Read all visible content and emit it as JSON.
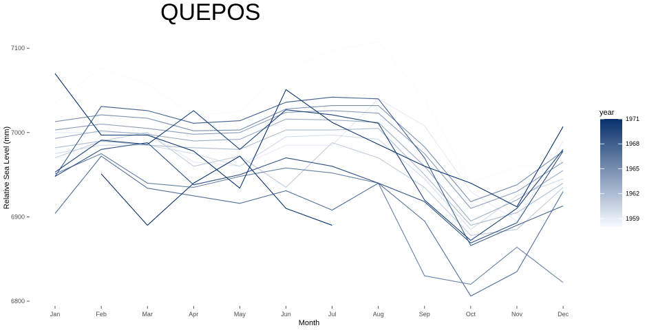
{
  "chart_data": {
    "type": "line",
    "title": "QUEPOS",
    "xlabel": "Month",
    "ylabel": "Relative Sea Level (mm)",
    "categories": [
      "Jan",
      "Feb",
      "Mar",
      "Apr",
      "May",
      "Jun",
      "Jul",
      "Aug",
      "Sep",
      "Oct",
      "Nov",
      "Dec"
    ],
    "ylim": [
      6790,
      7110
    ],
    "yticks": [
      6800,
      6900,
      7000,
      7100
    ],
    "grid": false,
    "legend": {
      "title": "year",
      "position": "right",
      "type": "colorbar",
      "range": [
        1958,
        1971
      ],
      "ticks": [
        1959,
        1962,
        1965,
        1968,
        1971
      ],
      "low_color": "#f7fbff",
      "high_color": "#08306b"
    },
    "series": [
      {
        "year": 1958,
        "values": [
          7035,
          7077,
          7058,
          7020,
          7025,
          7075,
          7097,
          7108,
          7040,
          6940,
          6960,
          6960
        ]
      },
      {
        "year": 1959,
        "values": [
          7000,
          7000,
          7000,
          6965,
          6960,
          6985,
          6985,
          7040,
          7008,
          6930,
          6895,
          6990
        ]
      },
      {
        "year": 1960,
        "values": [
          6975,
          6985,
          6985,
          6975,
          6960,
          6995,
          6997,
          6992,
          6945,
          6885,
          6925,
          6945
        ]
      },
      {
        "year": 1961,
        "values": [
          6970,
          6990,
          7000,
          6960,
          6972,
          6935,
          6988,
          6970,
          6935,
          6878,
          6885,
          6935
        ]
      },
      {
        "year": 1962,
        "values": [
          6982,
          6990,
          6985,
          6982,
          6980,
          7003,
          7003,
          7005,
          6950,
          6890,
          6905,
          6940
        ]
      },
      {
        "year": 1963,
        "values": [
          6993,
          7002,
          6998,
          6990,
          6992,
          7016,
          7015,
          7012,
          6960,
          6895,
          6920,
          6955
        ]
      },
      {
        "year": 1964,
        "values": [
          7003,
          7010,
          7005,
          6998,
          7000,
          7024,
          7026,
          7023,
          6975,
          6910,
          6930,
          6965
        ]
      },
      {
        "year": 1965,
        "values": [
          7013,
          7021,
          7017,
          7002,
          7003,
          7028,
          7032,
          7032,
          6983,
          6918,
          6938,
          6978
        ]
      },
      {
        "year": 1966,
        "values": [
          6951,
          6975,
          6940,
          6935,
          6948,
          6958,
          6952,
          6940,
          6830,
          6820,
          6864,
          6822
        ]
      },
      {
        "year": 1967,
        "values": [
          6904,
          6972,
          6934,
          6925,
          6916,
          6931,
          6908,
          6940,
          6895,
          6806,
          6835,
          6930
        ]
      },
      {
        "year": 1968,
        "values": [
          6948,
          7031,
          7026,
          7011,
          7014,
          7036,
          7042,
          7040,
          6970,
          6866,
          6890,
          6913
        ]
      },
      {
        "year": 1969,
        "values": [
          6948,
          6980,
          6988,
          6938,
          6950,
          6970,
          6960,
          6940,
          6918,
          6869,
          6893,
          6978
        ]
      },
      {
        "year": 1970,
        "values": [
          6953,
          6991,
          6986,
          7026,
          6980,
          7027,
          7021,
          7011,
          6920,
          6872,
          6910,
          6980
        ]
      },
      {
        "year": 1971,
        "values": [
          7070,
          6997,
          6997,
          6978,
          6934,
          7051,
          7012,
          6986,
          6960,
          6940,
          6912,
          7007
        ]
      },
      {
        "year": 1972,
        "values": [
          null,
          6951,
          6890,
          6940,
          6972,
          6910,
          6890,
          null,
          null,
          null,
          null,
          null
        ]
      }
    ]
  }
}
